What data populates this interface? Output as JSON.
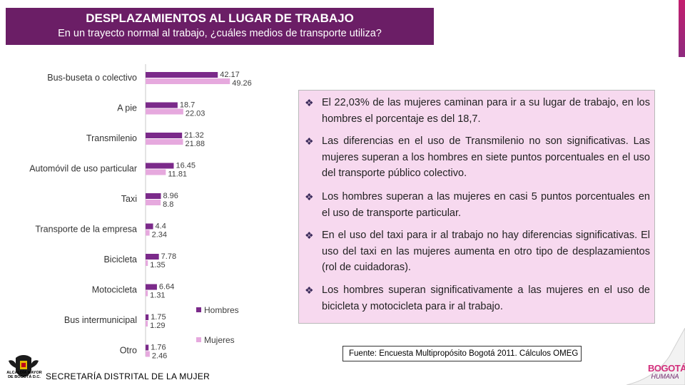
{
  "header": {
    "title": "DESPLAZAMIENTOS AL LUGAR DE TRABAJO",
    "subtitle": "En un trayecto normal al trabajo, ¿cuáles medios de transporte utiliza?"
  },
  "colors": {
    "hombres": "#7b2a8a",
    "mujeres": "#e6a9de",
    "title_bg": "#6b1e66",
    "panel_bg": "#f7d9ef"
  },
  "chart_data": {
    "type": "bar",
    "orientation": "horizontal",
    "title": "En un trayecto normal al trabajo, ¿cuáles medios de transporte utiliza?",
    "xlabel": "",
    "ylabel": "",
    "xlim": [
      0,
      60
    ],
    "grid": false,
    "legend": "right",
    "categories": [
      "Bus-buseta o colectivo",
      "A pie",
      "Transmilenio",
      "Automóvil de uso particular",
      "Taxi",
      "Transporte de la empresa",
      "Bicicleta",
      "Motocicleta",
      "Bus intermunicipal",
      "Otro"
    ],
    "series": [
      {
        "name": "Hombres",
        "values": [
          42.17,
          18.7,
          21.32,
          16.45,
          8.96,
          4.4,
          7.78,
          6.64,
          1.75,
          1.76
        ]
      },
      {
        "name": "Mujeres",
        "values": [
          49.26,
          22.03,
          21.88,
          11.81,
          8.8,
          2.34,
          1.35,
          1.31,
          1.29,
          2.46
        ]
      }
    ],
    "value_labels": {
      "Hombres": [
        "42.17",
        "18.7",
        "21.32",
        "16.45",
        "8.96",
        "4.4",
        "7.78",
        "6.64",
        "1.75",
        "1.76"
      ],
      "Mujeres": [
        "49.26",
        "22.03",
        "21.88",
        "11.81",
        "8.8",
        "2.34",
        "1.35",
        "1.31",
        "1.29",
        "2.46"
      ]
    }
  },
  "bullets": [
    "El 22,03% de las mujeres caminan para ir a su lugar de trabajo, en los hombres el porcentaje es del 18,7.",
    "Las diferencias en el uso de Transmilenio no son significativas. Las mujeres superan a los hombres en siete puntos porcentuales en el uso del transporte público colectivo.",
    "Los hombres superan a las mujeres en casi 5 puntos porcentuales en el uso de transporte particular.",
    "En el uso del taxi para ir al trabajo no hay diferencias significativas. El uso del taxi en las mujeres aumenta en otro tipo de desplazamientos (rol de cuidadoras).",
    "Los hombres superan significativamente a las mujeres en el uso de bicicleta y motocicleta para ir al trabajo."
  ],
  "source": "Fuente: Encuesta Multipropósito Bogotá 2011. Cálculos OMEG",
  "footer": "SECRETARÍA DISTRITAL DE LA MUJER",
  "logos": {
    "alcaldia_text": "ALCALDÍA MAYOR DE BOGOTÁ D.C.",
    "bogota_line1": "BOGOTÁ",
    "bogota_line2": "HUMANA"
  }
}
